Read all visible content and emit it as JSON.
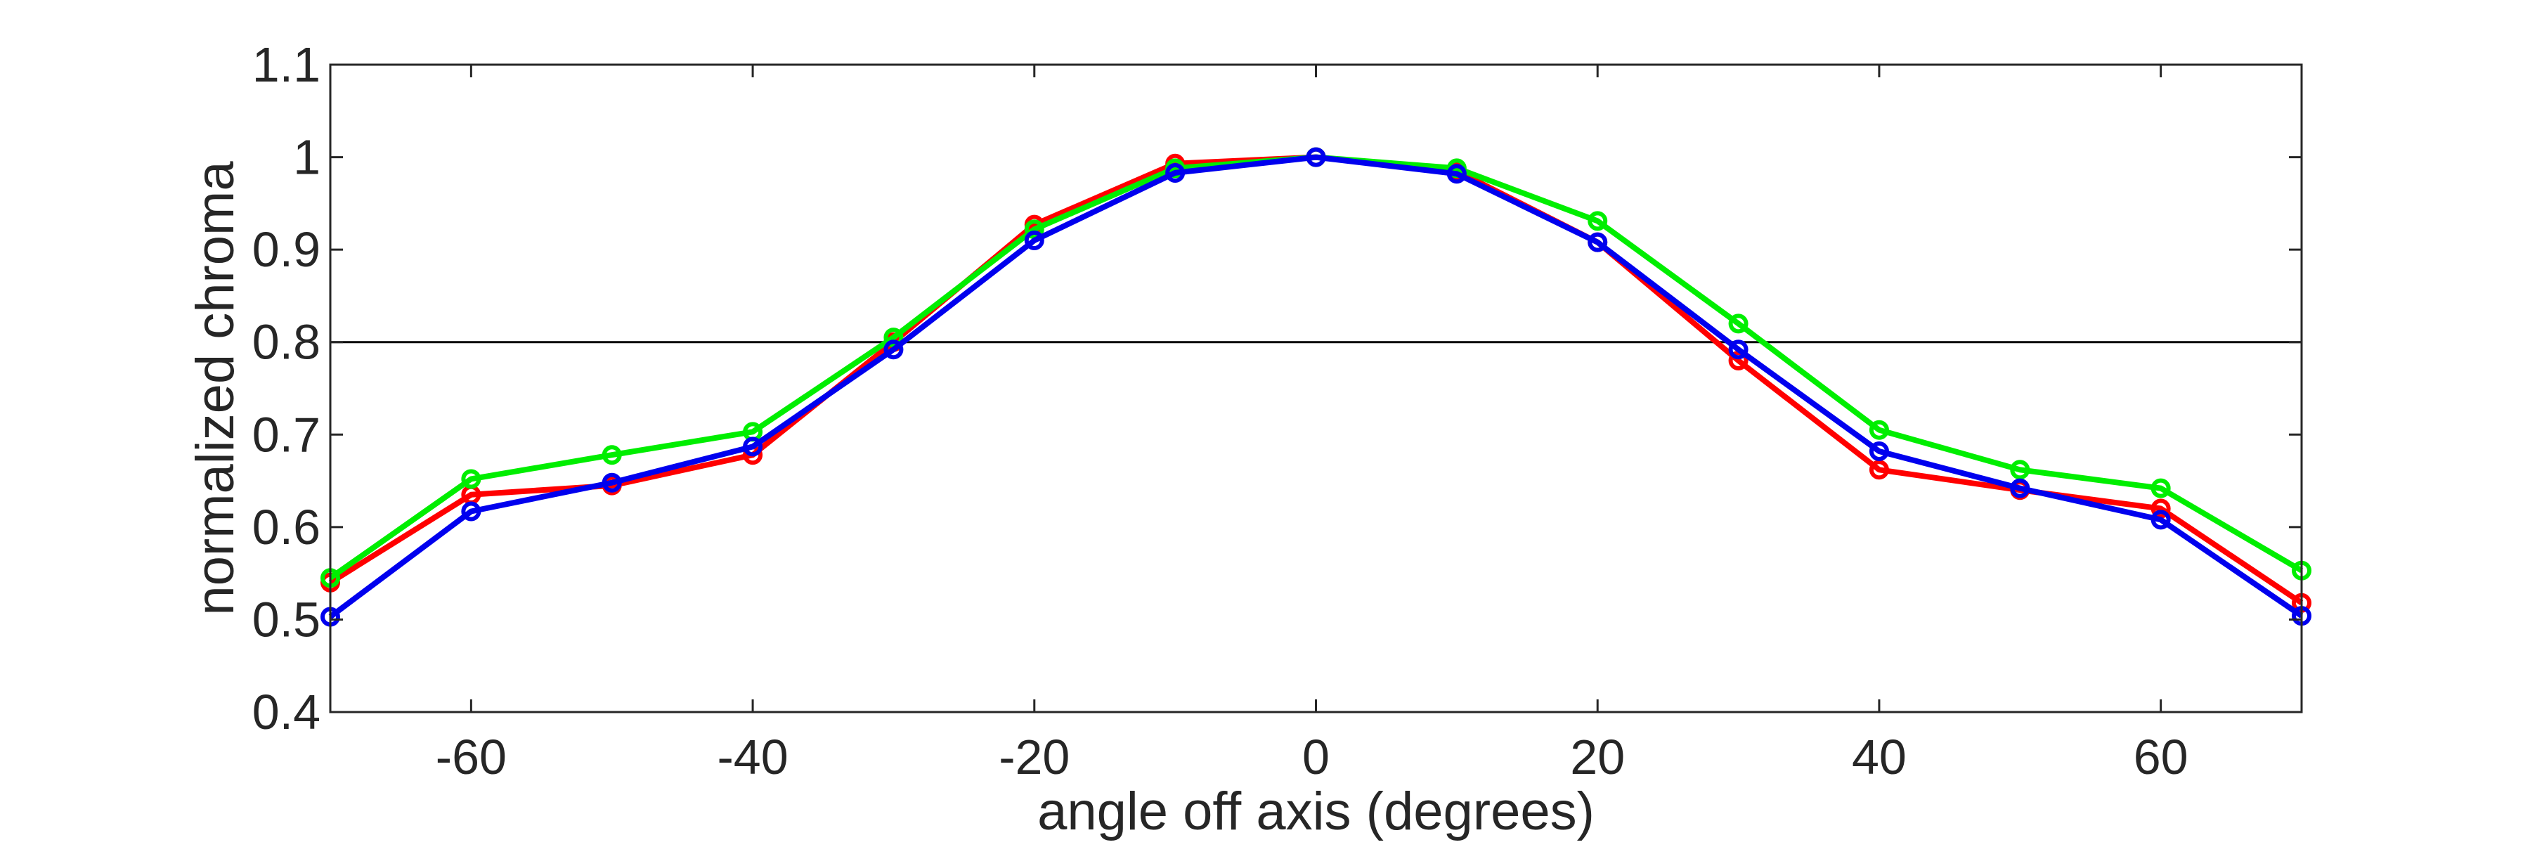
{
  "chart_data": {
    "type": "line",
    "xlabel": "angle off axis (degrees)",
    "ylabel": "normalized chroma",
    "xlim": [
      -70,
      70
    ],
    "ylim": [
      0.4,
      1.1
    ],
    "x_ticks": [
      -60,
      -40,
      -20,
      0,
      20,
      40,
      60
    ],
    "y_ticks": [
      0.4,
      0.5,
      0.6,
      0.7,
      0.8,
      0.9,
      1,
      1.1
    ],
    "y_tick_labels": [
      "0.4",
      "0.5",
      "0.6",
      "0.7",
      "0.8",
      "0.9",
      "1",
      "1.1"
    ],
    "reference_line_y": 0.8,
    "grid": false,
    "x": [
      -70,
      -60,
      -50,
      -40,
      -30,
      -20,
      -10,
      0,
      10,
      20,
      30,
      40,
      50,
      60,
      70
    ],
    "series": [
      {
        "color": "#ff0000",
        "values": [
          0.54,
          0.635,
          0.645,
          0.678,
          0.8,
          0.927,
          0.993,
          1.0,
          0.985,
          0.908,
          0.78,
          0.662,
          0.64,
          0.62,
          0.518
        ]
      },
      {
        "color": "#00ee00",
        "values": [
          0.545,
          0.652,
          0.678,
          0.703,
          0.805,
          0.922,
          0.988,
          1.0,
          0.988,
          0.931,
          0.82,
          0.705,
          0.662,
          0.642,
          0.553
        ]
      },
      {
        "color": "#0000ee",
        "values": [
          0.503,
          0.617,
          0.648,
          0.687,
          0.792,
          0.91,
          0.983,
          1.0,
          0.982,
          0.908,
          0.792,
          0.682,
          0.642,
          0.608,
          0.504
        ]
      }
    ]
  }
}
